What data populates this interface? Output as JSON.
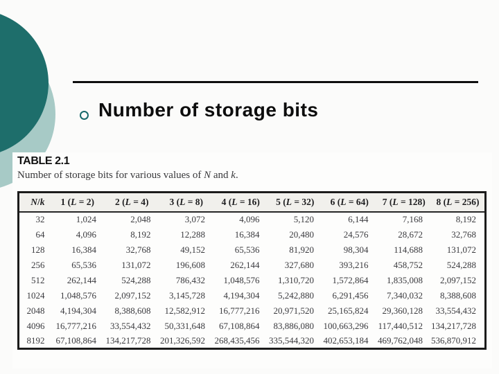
{
  "slide": {
    "title": "Number of storage bits"
  },
  "table": {
    "label": "TABLE 2.1",
    "caption_segments": [
      {
        "t": "Number of storage bits for various values of "
      },
      {
        "t": "N",
        "i": true
      },
      {
        "t": " and "
      },
      {
        "t": "k",
        "i": true
      },
      {
        "t": "."
      }
    ],
    "corner_segments": [
      {
        "t": "N",
        "i": true
      },
      {
        "t": "/"
      },
      {
        "t": "k",
        "i": true
      }
    ],
    "column_headers": [
      [
        {
          "t": "1 ("
        },
        {
          "t": "L",
          "i": true
        },
        {
          "t": " = 2)"
        }
      ],
      [
        {
          "t": "2 ("
        },
        {
          "t": "L",
          "i": true
        },
        {
          "t": " = 4)"
        }
      ],
      [
        {
          "t": "3 ("
        },
        {
          "t": "L",
          "i": true
        },
        {
          "t": " = 8)"
        }
      ],
      [
        {
          "t": "4 ("
        },
        {
          "t": "L",
          "i": true
        },
        {
          "t": " = 16)"
        }
      ],
      [
        {
          "t": "5 ("
        },
        {
          "t": "L",
          "i": true
        },
        {
          "t": " = 32)"
        }
      ],
      [
        {
          "t": "6 ("
        },
        {
          "t": "L",
          "i": true
        },
        {
          "t": " = 64)"
        }
      ],
      [
        {
          "t": "7 ("
        },
        {
          "t": "L",
          "i": true
        },
        {
          "t": " = 128)"
        }
      ],
      [
        {
          "t": "8 ("
        },
        {
          "t": "L",
          "i": true
        },
        {
          "t": " = 256)"
        }
      ]
    ],
    "rows": [
      {
        "n": "32",
        "values": [
          "1,024",
          "2,048",
          "3,072",
          "4,096",
          "5,120",
          "6,144",
          "7,168",
          "8,192"
        ]
      },
      {
        "n": "64",
        "values": [
          "4,096",
          "8,192",
          "12,288",
          "16,384",
          "20,480",
          "24,576",
          "28,672",
          "32,768"
        ]
      },
      {
        "n": "128",
        "values": [
          "16,384",
          "32,768",
          "49,152",
          "65,536",
          "81,920",
          "98,304",
          "114,688",
          "131,072"
        ]
      },
      {
        "n": "256",
        "values": [
          "65,536",
          "131,072",
          "196,608",
          "262,144",
          "327,680",
          "393,216",
          "458,752",
          "524,288"
        ]
      },
      {
        "n": "512",
        "values": [
          "262,144",
          "524,288",
          "786,432",
          "1,048,576",
          "1,310,720",
          "1,572,864",
          "1,835,008",
          "2,097,152"
        ]
      },
      {
        "n": "1024",
        "values": [
          "1,048,576",
          "2,097,152",
          "3,145,728",
          "4,194,304",
          "5,242,880",
          "6,291,456",
          "7,340,032",
          "8,388,608"
        ]
      },
      {
        "n": "2048",
        "values": [
          "4,194,304",
          "8,388,608",
          "12,582,912",
          "16,777,216",
          "20,971,520",
          "25,165,824",
          "29,360,128",
          "33,554,432"
        ]
      },
      {
        "n": "4096",
        "values": [
          "16,777,216",
          "33,554,432",
          "50,331,648",
          "67,108,864",
          "83,886,080",
          "100,663,296",
          "117,440,512",
          "134,217,728"
        ]
      },
      {
        "n": "8192",
        "values": [
          "67,108,864",
          "134,217,728",
          "201,326,592",
          "268,435,456",
          "335,544,320",
          "402,653,184",
          "469,762,048",
          "536,870,912"
        ]
      }
    ]
  },
  "colors": {
    "accent_dark_teal": "#1e6e6b",
    "accent_light_teal": "#a7cac6",
    "bullet_ring": "#17696b",
    "rule_black": "#0e0e0e",
    "header_band": "#f1f0ec"
  }
}
